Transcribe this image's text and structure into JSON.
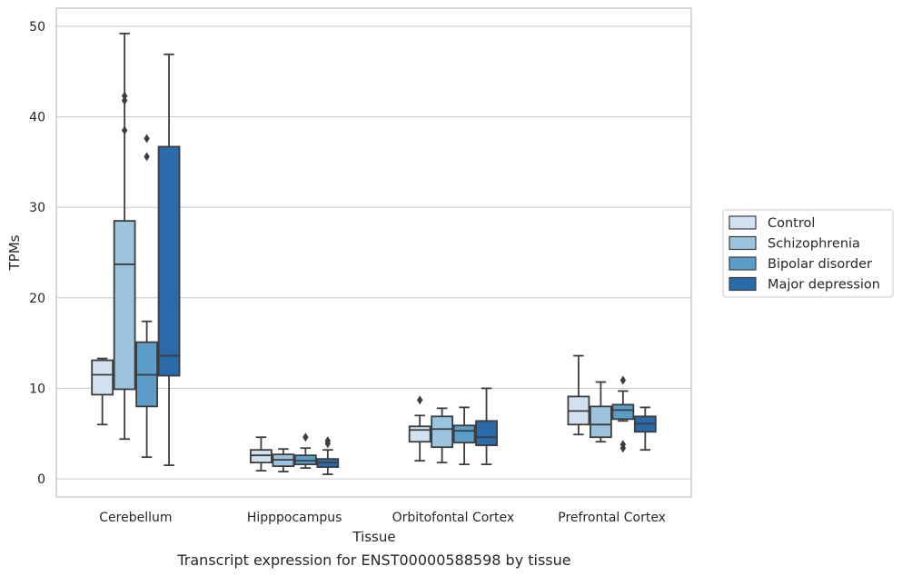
{
  "chart_data": {
    "type": "box",
    "caption": "Transcript expression for ENST00000588598 by tissue",
    "xlabel": "Tissue",
    "ylabel": "TPMs",
    "ylim": [
      -2,
      52
    ],
    "yticks": [
      0,
      10,
      20,
      30,
      40,
      50
    ],
    "grid": "horizontal",
    "legend_position": "right",
    "categories": [
      "Cerebellum",
      "Hipppocampus",
      "Orbitofontal Cortex",
      "Prefrontal Cortex"
    ],
    "series": [
      {
        "name": "Control",
        "color": "#d1e1ef",
        "boxes": [
          {
            "whislo": 6.0,
            "q1": 9.3,
            "med": 11.5,
            "q3": 13.1,
            "whishi": 13.3,
            "fliers": []
          },
          {
            "whislo": 0.9,
            "q1": 1.8,
            "med": 2.6,
            "q3": 3.2,
            "whishi": 4.6,
            "fliers": []
          },
          {
            "whislo": 2.0,
            "q1": 4.1,
            "med": 5.4,
            "q3": 5.8,
            "whishi": 7.0,
            "fliers": [
              8.7
            ]
          },
          {
            "whislo": 4.9,
            "q1": 6.0,
            "med": 7.5,
            "q3": 9.1,
            "whishi": 13.6,
            "fliers": []
          }
        ]
      },
      {
        "name": "Schizophrenia",
        "color": "#9ac4df",
        "boxes": [
          {
            "whislo": 4.4,
            "q1": 9.9,
            "med": 23.7,
            "q3": 28.5,
            "whishi": 49.2,
            "fliers": [
              38.5,
              41.8,
              42.3
            ]
          },
          {
            "whislo": 0.8,
            "q1": 1.4,
            "med": 2.1,
            "q3": 2.7,
            "whishi": 3.3,
            "fliers": []
          },
          {
            "whislo": 1.8,
            "q1": 3.5,
            "med": 5.5,
            "q3": 6.9,
            "whishi": 7.8,
            "fliers": []
          },
          {
            "whislo": 4.1,
            "q1": 4.6,
            "med": 6.0,
            "q3": 8.0,
            "whishi": 10.7,
            "fliers": []
          }
        ]
      },
      {
        "name": "Bipolar disorder",
        "color": "#5b9dc9",
        "boxes": [
          {
            "whislo": 2.4,
            "q1": 8.0,
            "med": 11.5,
            "q3": 15.1,
            "whishi": 17.4,
            "fliers": [
              35.6,
              37.6
            ]
          },
          {
            "whislo": 1.2,
            "q1": 1.6,
            "med": 2.0,
            "q3": 2.6,
            "whishi": 3.4,
            "fliers": [
              4.6
            ]
          },
          {
            "whislo": 1.6,
            "q1": 4.0,
            "med": 5.3,
            "q3": 5.9,
            "whishi": 7.9,
            "fliers": []
          },
          {
            "whislo": 6.4,
            "q1": 6.6,
            "med": 7.6,
            "q3": 8.2,
            "whishi": 9.7,
            "fliers": [
              10.9,
              3.4,
              3.8
            ]
          }
        ]
      },
      {
        "name": "Major depression",
        "color": "#2a6aa9",
        "boxes": [
          {
            "whislo": 1.5,
            "q1": 11.4,
            "med": 13.6,
            "q3": 36.7,
            "whishi": 46.9,
            "fliers": []
          },
          {
            "whislo": 0.5,
            "q1": 1.3,
            "med": 1.8,
            "q3": 2.2,
            "whishi": 3.2,
            "fliers": [
              3.9,
              4.2
            ]
          },
          {
            "whislo": 1.6,
            "q1": 3.7,
            "med": 4.6,
            "q3": 6.4,
            "whishi": 10.0,
            "fliers": []
          },
          {
            "whislo": 3.2,
            "q1": 5.2,
            "med": 6.1,
            "q3": 6.9,
            "whishi": 7.9,
            "fliers": []
          }
        ]
      }
    ]
  }
}
